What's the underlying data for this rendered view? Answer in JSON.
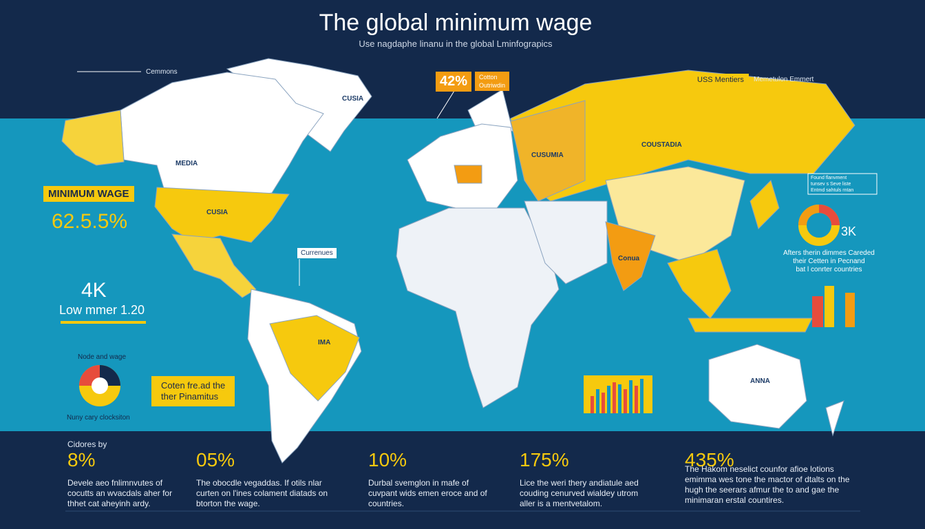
{
  "header": {
    "title": "The global minimum wage",
    "subtitle": "Use nagdaphe linanu in the global Lminfograpics"
  },
  "map_labels": {
    "north": "CUSIA",
    "canada": "MEDIA",
    "usa": "CUSIA",
    "russia": "CUSUMIA",
    "asia": "COUSTADIA",
    "australia": "ANNA",
    "india": "Conua",
    "brazil": "IMA"
  },
  "top_notes": {
    "left": "Cemmons",
    "badge_value": "42%",
    "badge_text": [
      "Cotton",
      "Outriwdin"
    ],
    "tag": "USS Mentiers",
    "tag_note": "Memetulon Emmert"
  },
  "left_panel": {
    "badge": "MINIMUM WAGE",
    "percent": "62.5.5%",
    "big": "4K",
    "sub": "Low mmer 1.20",
    "pie_title": "Node and wage",
    "pie_caption": "Nuny cary clocksiton"
  },
  "callouts": {
    "americas": "Currenues",
    "yellow": [
      "Coten fre.ad the",
      "ther Pinamitus"
    ]
  },
  "right_panel": {
    "legend": [
      "Found flanvment",
      "tunsev s Seve liste",
      "Entmd sahtuls rntan"
    ],
    "big": "3K",
    "text": [
      "Afters therin dimmes Careded",
      "their Cetten in Pecnand",
      "bat l conrter countries"
    ]
  },
  "bottom": {
    "label": "Cidores by",
    "stats": [
      {
        "value": "8%",
        "text": [
          "Devele aeo fnlimnvutes of",
          "cocutts an wvacdals aher for",
          "thhet cat aheyinh ardy."
        ]
      },
      {
        "value": "05%",
        "text": [
          "The obocdle vegaddas. If otils nlar",
          "curten on l'ines colament diatads on",
          "btorton the wage."
        ]
      },
      {
        "value": "10%",
        "text": [
          "Durbal svemglon in mafe of",
          "cuvpant wids emen eroce and of",
          "countries."
        ]
      },
      {
        "value": "175%",
        "text": [
          "Lice the weri thery andiatule aed",
          "couding cenurved wialdey utrom",
          "aller is a mentvetalom."
        ]
      },
      {
        "value": "435%",
        "text": [
          "The Hakom neselict counfor afioe lotions",
          "emimma wes tone the mactor of dtalts on the",
          "hugh the seerars afmur the to and gae the",
          "minimaran erstal countires."
        ]
      }
    ]
  }
}
